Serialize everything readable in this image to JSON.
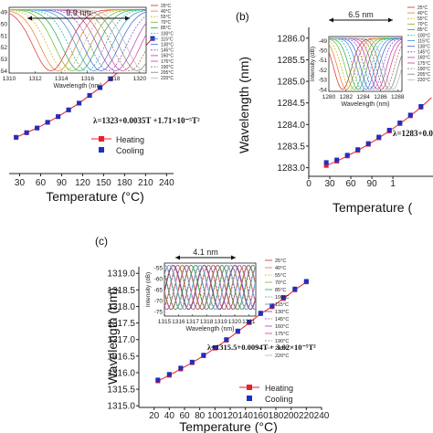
{
  "chart_data": [
    {
      "panel": "(a)",
      "type": "scatter",
      "xlabel": "Temperature (°C)",
      "ylabel": "",
      "x_ticks": [
        "30",
        "60",
        "90",
        "120",
        "150",
        "180",
        "210",
        "240"
      ],
      "equation": "λ=1323+0.0035T +1.71×10⁻⁵T²",
      "legend": [
        "Heating",
        "Cooling"
      ],
      "legend_placement": "bottom-center",
      "series": [
        {
          "name": "Heating",
          "color": "#e8202a",
          "marker": "square",
          "line": true,
          "x": [
            25,
            40,
            55,
            70,
            85,
            100,
            115,
            130,
            145,
            160,
            175,
            190,
            205,
            220
          ],
          "y": [
            1323.1,
            1323.19,
            1323.28,
            1323.39,
            1323.5,
            1323.63,
            1323.76,
            1323.91,
            1324.06,
            1324.23,
            1324.41,
            1324.6,
            1324.8,
            1325.01
          ]
        },
        {
          "name": "Cooling",
          "color": "#1f2fbf",
          "marker": "square",
          "line": false,
          "x": [
            25,
            40,
            55,
            70,
            85,
            100,
            115,
            130,
            145,
            160,
            175,
            190,
            205,
            220
          ],
          "y": [
            1323.1,
            1323.19,
            1323.28,
            1323.39,
            1323.5,
            1323.63,
            1323.76,
            1323.91,
            1324.06,
            1324.23,
            1324.41,
            1324.6,
            1324.8,
            1325.01
          ]
        }
      ],
      "inset": {
        "xlabel": "Wavelength (nm)",
        "ylabel": "Intensity (dB)",
        "x_ticks": [
          "1310",
          "1312",
          "1314",
          "1316",
          "1318",
          "1320"
        ],
        "y_ticks": [
          "-49",
          "-50",
          "-51",
          "-52",
          "-53",
          "-54"
        ],
        "span_label": "9.9 nm",
        "legend": [
          "25°C",
          "40°C",
          "55°C",
          "70°C",
          "85°C",
          "100°C",
          "115°C",
          "130°C",
          "145°C",
          "160°C",
          "175°C",
          "190°C",
          "205°C",
          "220°C"
        ]
      }
    },
    {
      "panel": "(b)",
      "type": "scatter",
      "xlabel": "Temperature (",
      "ylabel": "Wavelength (nm)",
      "x_ticks": [
        "0",
        "30",
        "60",
        "90",
        "1"
      ],
      "y_ticks": [
        "1283.0",
        "1283.5",
        "1284.0",
        "1284.5",
        "1285.0",
        "1285.5",
        "1286.0"
      ],
      "equation": "λ=1283+0.0",
      "series": [
        {
          "name": "Heating",
          "color": "#e8202a",
          "marker": "square",
          "line": true,
          "x": [
            25,
            40,
            55,
            70,
            85,
            100,
            115,
            130,
            145,
            160,
            175
          ],
          "y": [
            1283.05,
            1283.15,
            1283.27,
            1283.4,
            1283.54,
            1283.69,
            1283.85,
            1284.02,
            1284.2,
            1284.4,
            1284.62
          ]
        },
        {
          "name": "Cooling",
          "color": "#1f2fbf",
          "marker": "square",
          "line": false,
          "x": [
            25,
            40,
            55,
            70,
            85,
            100,
            115,
            130,
            145,
            160,
            175
          ],
          "y": [
            1283.12,
            1283.18,
            1283.29,
            1283.42,
            1283.56,
            1283.71,
            1283.87,
            1284.04,
            1284.22,
            1284.42,
            1284.64
          ]
        }
      ],
      "inset": {
        "xlabel": "Wavelength (nm)",
        "ylabel": "Intensity (dB)",
        "x_ticks": [
          "1280",
          "1282",
          "1284",
          "1286",
          "1288"
        ],
        "y_ticks": [
          "-49",
          "-50",
          "-51",
          "-52",
          "-53",
          "-54"
        ],
        "span_label": "6.5 nm",
        "legend": [
          "25°C",
          "40°C",
          "55°C",
          "70°C",
          "85°C",
          "100°C",
          "115°C",
          "130°C",
          "145°C",
          "160°C",
          "175°C",
          "190°C",
          "205°C",
          "220°C"
        ]
      }
    },
    {
      "panel": "(c)",
      "type": "scatter",
      "xlabel": "Temperature (°C)",
      "ylabel": "Wavelength (nm)",
      "x_ticks": [
        "20",
        "40",
        "60",
        "80",
        "100",
        "120",
        "140",
        "160",
        "180",
        "200",
        "220",
        "240"
      ],
      "y_ticks": [
        "1315.0",
        "1315.5",
        "1316.0",
        "1316.5",
        "1317.0",
        "1317.5",
        "1318.0",
        "1318.5",
        "1319.0"
      ],
      "ylim": [
        1315.0,
        1319.0
      ],
      "xlim": [
        0,
        240
      ],
      "equation": "λ=1315.5+0.0094T + 3.02×10⁻⁵T²",
      "legend": [
        "Heating",
        "Cooling"
      ],
      "legend_placement": "bottom-right",
      "series": [
        {
          "name": "Heating",
          "color": "#e8202a",
          "marker": "square",
          "line": true,
          "x": [
            25,
            40,
            55,
            70,
            85,
            100,
            115,
            130,
            145,
            160,
            175,
            190,
            205,
            220
          ],
          "y": [
            1315.75,
            1315.92,
            1316.11,
            1316.3,
            1316.51,
            1316.74,
            1316.98,
            1317.24,
            1317.51,
            1317.78,
            1317.99,
            1318.24,
            1318.5,
            1318.74
          ]
        },
        {
          "name": "Cooling",
          "color": "#1f2fbf",
          "marker": "square",
          "line": false,
          "x": [
            25,
            40,
            55,
            70,
            85,
            100,
            115,
            130,
            145,
            160,
            175,
            190,
            205,
            220
          ],
          "y": [
            1315.78,
            1315.95,
            1316.14,
            1316.32,
            1316.53,
            1316.76,
            1317.0,
            1317.26,
            1317.53,
            1317.8,
            1318.02,
            1318.27,
            1318.53,
            1318.76
          ]
        }
      ],
      "inset": {
        "xlabel": "Wavelength (nm)",
        "ylabel": "Intensity (dB)",
        "x_ticks": [
          "1315",
          "1316",
          "1317",
          "1318",
          "1319",
          "1320",
          "1321"
        ],
        "y_ticks": [
          "-75",
          "-70",
          "-65",
          "-60",
          "-55"
        ],
        "y_values": [
          -75,
          -70,
          -65,
          -60,
          -55
        ],
        "span_label": "4.1 nm",
        "legend": [
          "25°C",
          "40°C",
          "55°C",
          "70°C",
          "85°C",
          "100°C",
          "115°C",
          "130°C",
          "145°C",
          "160°C",
          "175°C",
          "190°C",
          "205°C",
          "220°C"
        ]
      }
    }
  ],
  "colors": {
    "heating": "#e8202a",
    "cooling": "#1f2fbf",
    "inset_palette": [
      "#d9232d",
      "#e97a1f",
      "#c7b21a",
      "#6fb52a",
      "#1ea84f",
      "#1aa9a4",
      "#2c8fd8",
      "#3b5bd6",
      "#7a3fc8",
      "#b13bb9",
      "#d43c8c",
      "#8a6a3b",
      "#7f7f7f",
      "#b5b5b5"
    ]
  }
}
